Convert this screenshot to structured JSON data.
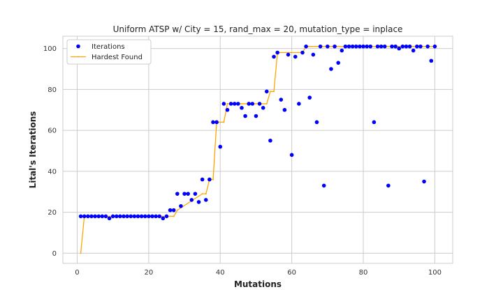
{
  "chart_data": {
    "type": "scatter",
    "title": "Uniform ATSP w/ City = 15, rand_max = 20, mutation_type = inplace",
    "xlabel": "Mutations",
    "ylabel": "Lital's Iterations",
    "xlim": [
      -4,
      105
    ],
    "ylim": [
      -5,
      106
    ],
    "xticks": [
      0,
      20,
      40,
      60,
      80,
      100
    ],
    "yticks": [
      0,
      20,
      40,
      60,
      80,
      100
    ],
    "grid": true,
    "legend_position": "top-left",
    "colors": {
      "iterations": "#0000ff",
      "hardest": "#ffa500",
      "grid": "#cccccc",
      "frame": "#cccccc"
    },
    "series": [
      {
        "name": "Iterations",
        "style": "points",
        "x": [
          1,
          2,
          3,
          4,
          5,
          6,
          7,
          8,
          9,
          10,
          11,
          12,
          13,
          14,
          15,
          16,
          17,
          18,
          19,
          20,
          21,
          22,
          23,
          24,
          25,
          26,
          27,
          28,
          29,
          30,
          31,
          32,
          33,
          34,
          35,
          36,
          37,
          38,
          39,
          40,
          41,
          42,
          43,
          44,
          45,
          46,
          47,
          48,
          49,
          50,
          51,
          52,
          53,
          54,
          55,
          56,
          57,
          58,
          59,
          60,
          61,
          62,
          63,
          64,
          65,
          66,
          67,
          68,
          69,
          70,
          71,
          72,
          73,
          74,
          75,
          76,
          77,
          78,
          79,
          80,
          81,
          82,
          83,
          84,
          85,
          86,
          87,
          88,
          89,
          90,
          91,
          92,
          93,
          94,
          95,
          96,
          97,
          98,
          99,
          100
        ],
        "y": [
          18,
          18,
          18,
          18,
          18,
          18,
          18,
          18,
          17,
          18,
          18,
          18,
          18,
          18,
          18,
          18,
          18,
          18,
          18,
          18,
          18,
          18,
          18,
          17,
          18,
          21,
          21,
          29,
          23,
          29,
          29,
          26,
          29,
          25,
          36,
          26,
          36,
          64,
          64,
          52,
          73,
          70,
          73,
          73,
          73,
          71,
          67,
          73,
          73,
          67,
          73,
          71,
          79,
          55,
          96,
          98,
          75,
          70,
          97,
          48,
          96,
          73,
          98,
          101,
          76,
          97,
          64,
          101,
          33,
          101,
          90,
          101,
          93,
          99,
          101,
          101,
          101,
          101,
          101,
          101,
          101,
          101,
          64,
          101,
          101,
          101,
          33,
          101,
          101,
          100,
          101,
          101,
          101,
          99,
          101,
          101,
          35,
          101,
          94,
          101
        ]
      },
      {
        "name": "Hardest Found",
        "style": "step-line",
        "x": [
          1,
          2,
          27,
          28,
          35,
          36,
          37,
          38,
          39,
          40,
          41,
          42,
          53,
          54,
          55,
          56,
          63,
          64,
          100
        ],
        "y": [
          0,
          18,
          18,
          21,
          29,
          29,
          36,
          36,
          64,
          64,
          64,
          73,
          73,
          79,
          79,
          98,
          98,
          101,
          101
        ]
      }
    ]
  }
}
